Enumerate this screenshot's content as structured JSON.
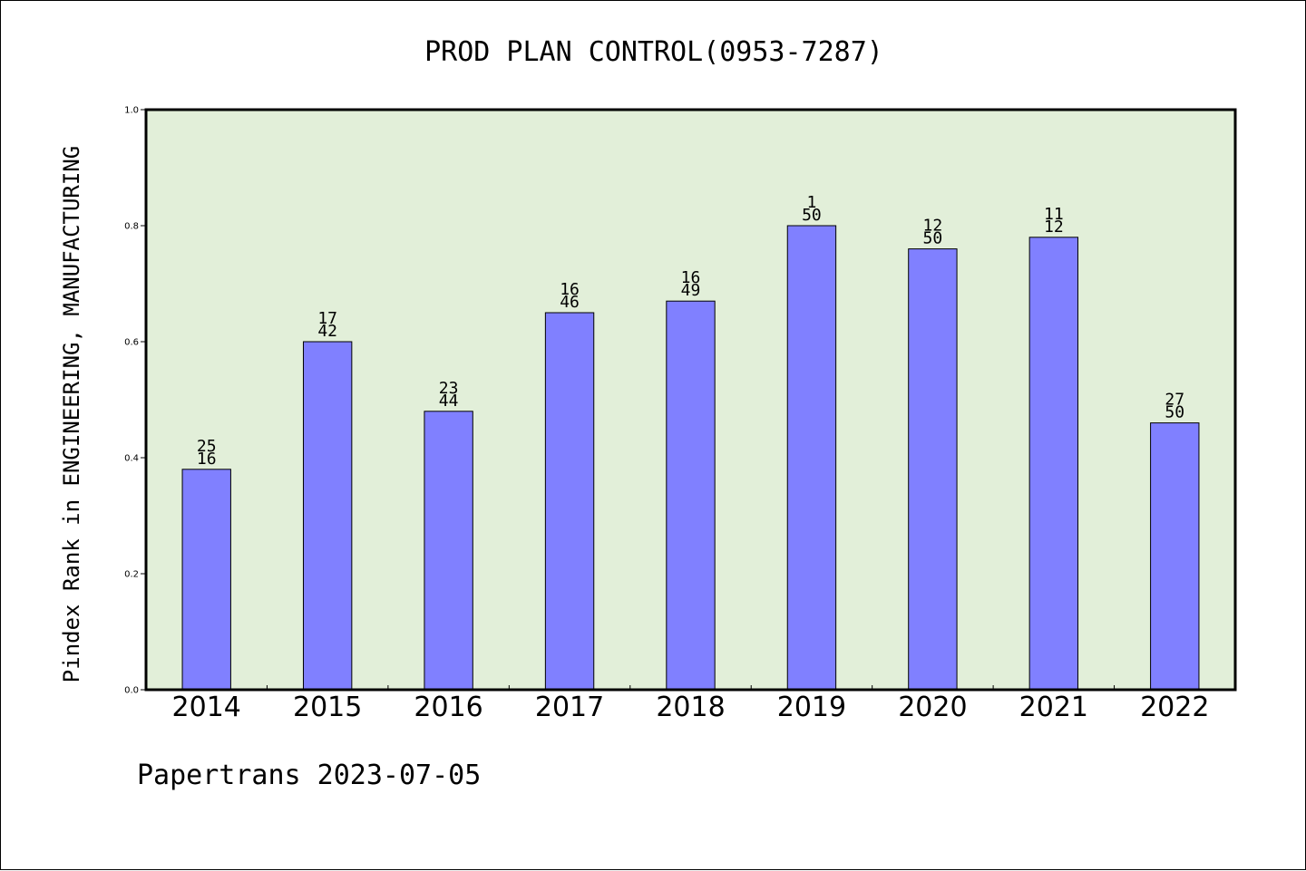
{
  "chart_data": {
    "type": "bar",
    "title": "PROD PLAN CONTROL(0953-7287)",
    "xlabel": "",
    "ylabel": "Pindex Rank in ENGINEERING, MANUFACTURING",
    "footer": "Papertrans 2023-07-05",
    "categories": [
      "2014",
      "2015",
      "2016",
      "2017",
      "2018",
      "2019",
      "2020",
      "2021",
      "2022"
    ],
    "values": [
      0.38,
      0.6,
      0.48,
      0.65,
      0.67,
      0.8,
      0.76,
      0.78,
      0.46
    ],
    "label_top": [
      "25",
      "17",
      "23",
      "16",
      "16",
      "1",
      "12",
      "11",
      "27"
    ],
    "label_bottom": [
      "16",
      "42",
      "44",
      "46",
      "49",
      "50",
      "50",
      "12",
      "50"
    ],
    "ylim": [
      0,
      1.0
    ],
    "yticks": [
      0.0,
      0.2,
      0.4,
      0.6,
      0.8,
      1.0
    ],
    "ytick_labels": [
      "0.0",
      "0.2",
      "0.4",
      "0.6",
      "0.8",
      "1.0"
    ],
    "grid": false,
    "colors": {
      "plot_background": "#e2efd9",
      "bar_fill": "#8080ff",
      "bar_stroke": "#000000",
      "axis": "#000000"
    }
  }
}
